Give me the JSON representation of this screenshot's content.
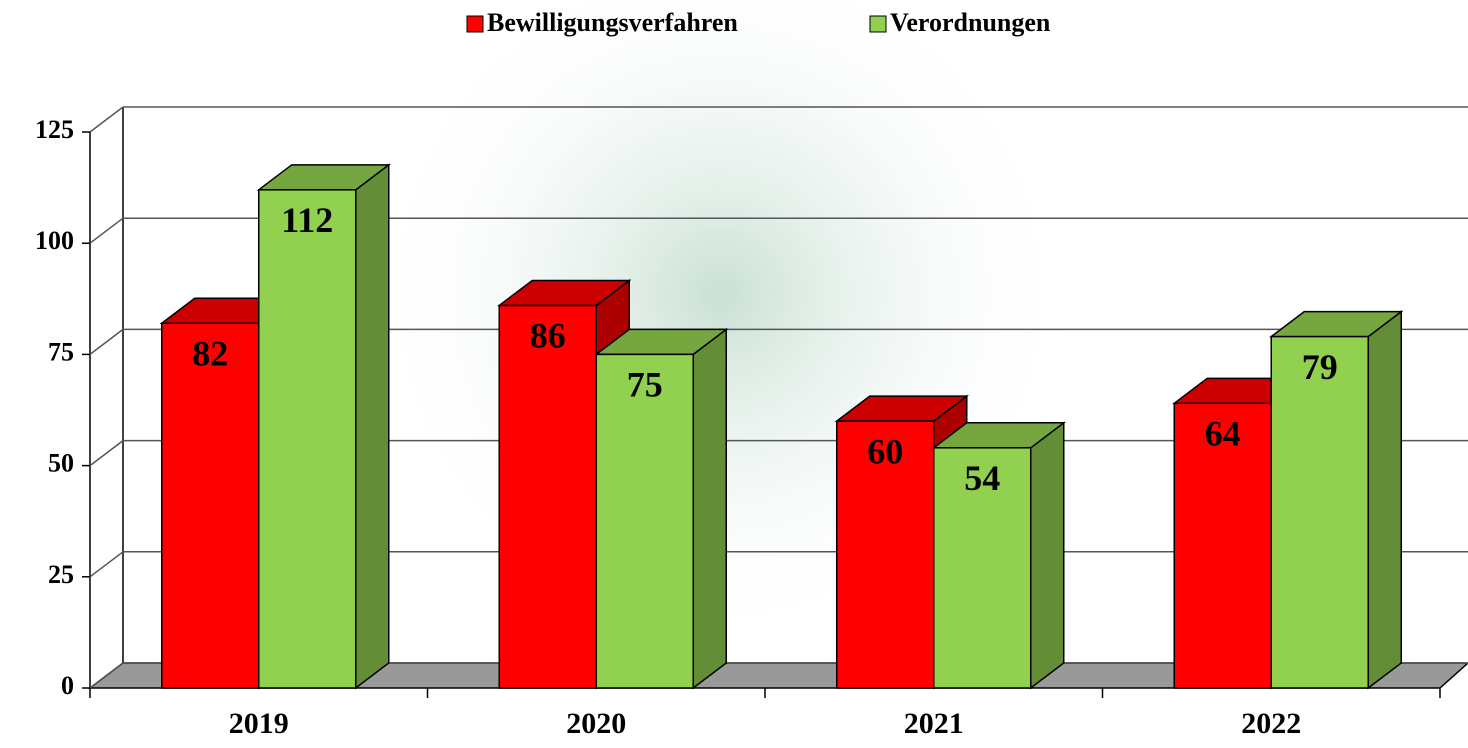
{
  "chart_data": {
    "type": "bar3d",
    "categories": [
      "2019",
      "2020",
      "2021",
      "2022"
    ],
    "series": [
      {
        "name": "Bewilligungsverfahren",
        "color": "#ff0000",
        "values": [
          82,
          86,
          60,
          64
        ]
      },
      {
        "name": "Verordnungen",
        "color": "#92d050",
        "values": [
          112,
          75,
          54,
          79
        ]
      }
    ],
    "ylim": [
      0,
      125
    ],
    "yticks": [
      0,
      25,
      50,
      75,
      100,
      125
    ],
    "grid": true,
    "legend": "top"
  }
}
